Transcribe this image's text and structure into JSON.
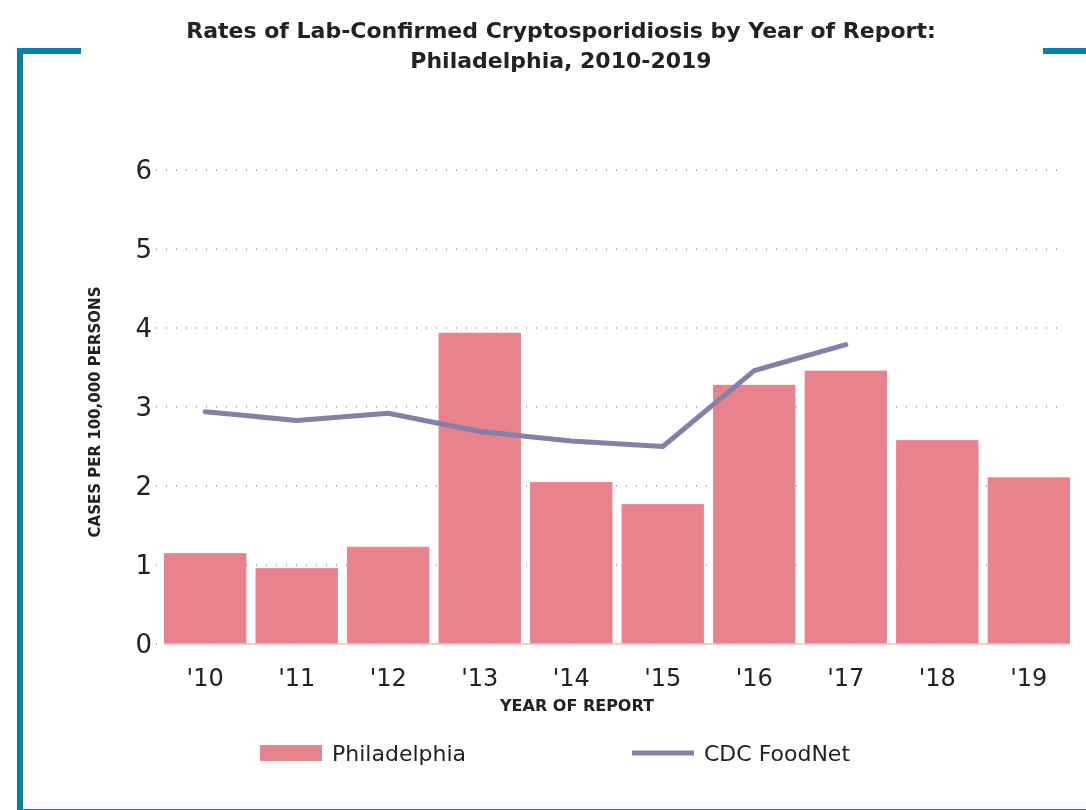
{
  "chart_data": {
    "type": "bar",
    "title": "Rates of Lab-Confirmed Cryptosporidiosis by Year of Report: Philadelphia, 2010-2019",
    "xlabel": "YEAR OF REPORT",
    "ylabel": "CASES PER 100,000 PERSONS",
    "categories": [
      "'10",
      "'11",
      "'12",
      "'13",
      "'14",
      "'15",
      "'16",
      "'17",
      "'18",
      "'19"
    ],
    "series": [
      {
        "name": "Philadelphia",
        "type": "bar",
        "color": "#e8828c",
        "values": [
          1.15,
          0.96,
          1.23,
          3.94,
          2.05,
          1.77,
          3.28,
          3.46,
          2.58,
          2.11
        ]
      },
      {
        "name": "CDC FoodNet",
        "type": "line",
        "color": "#8580a8",
        "values": [
          2.94,
          2.83,
          2.92,
          2.69,
          2.57,
          2.5,
          3.46,
          3.79,
          null,
          null
        ]
      }
    ],
    "ylim": [
      0,
      6
    ],
    "yticks": [
      0,
      1,
      2,
      3,
      4,
      5,
      6
    ],
    "grid": "y",
    "legend": "bottom",
    "marker": "none",
    "line_style": "solid"
  }
}
